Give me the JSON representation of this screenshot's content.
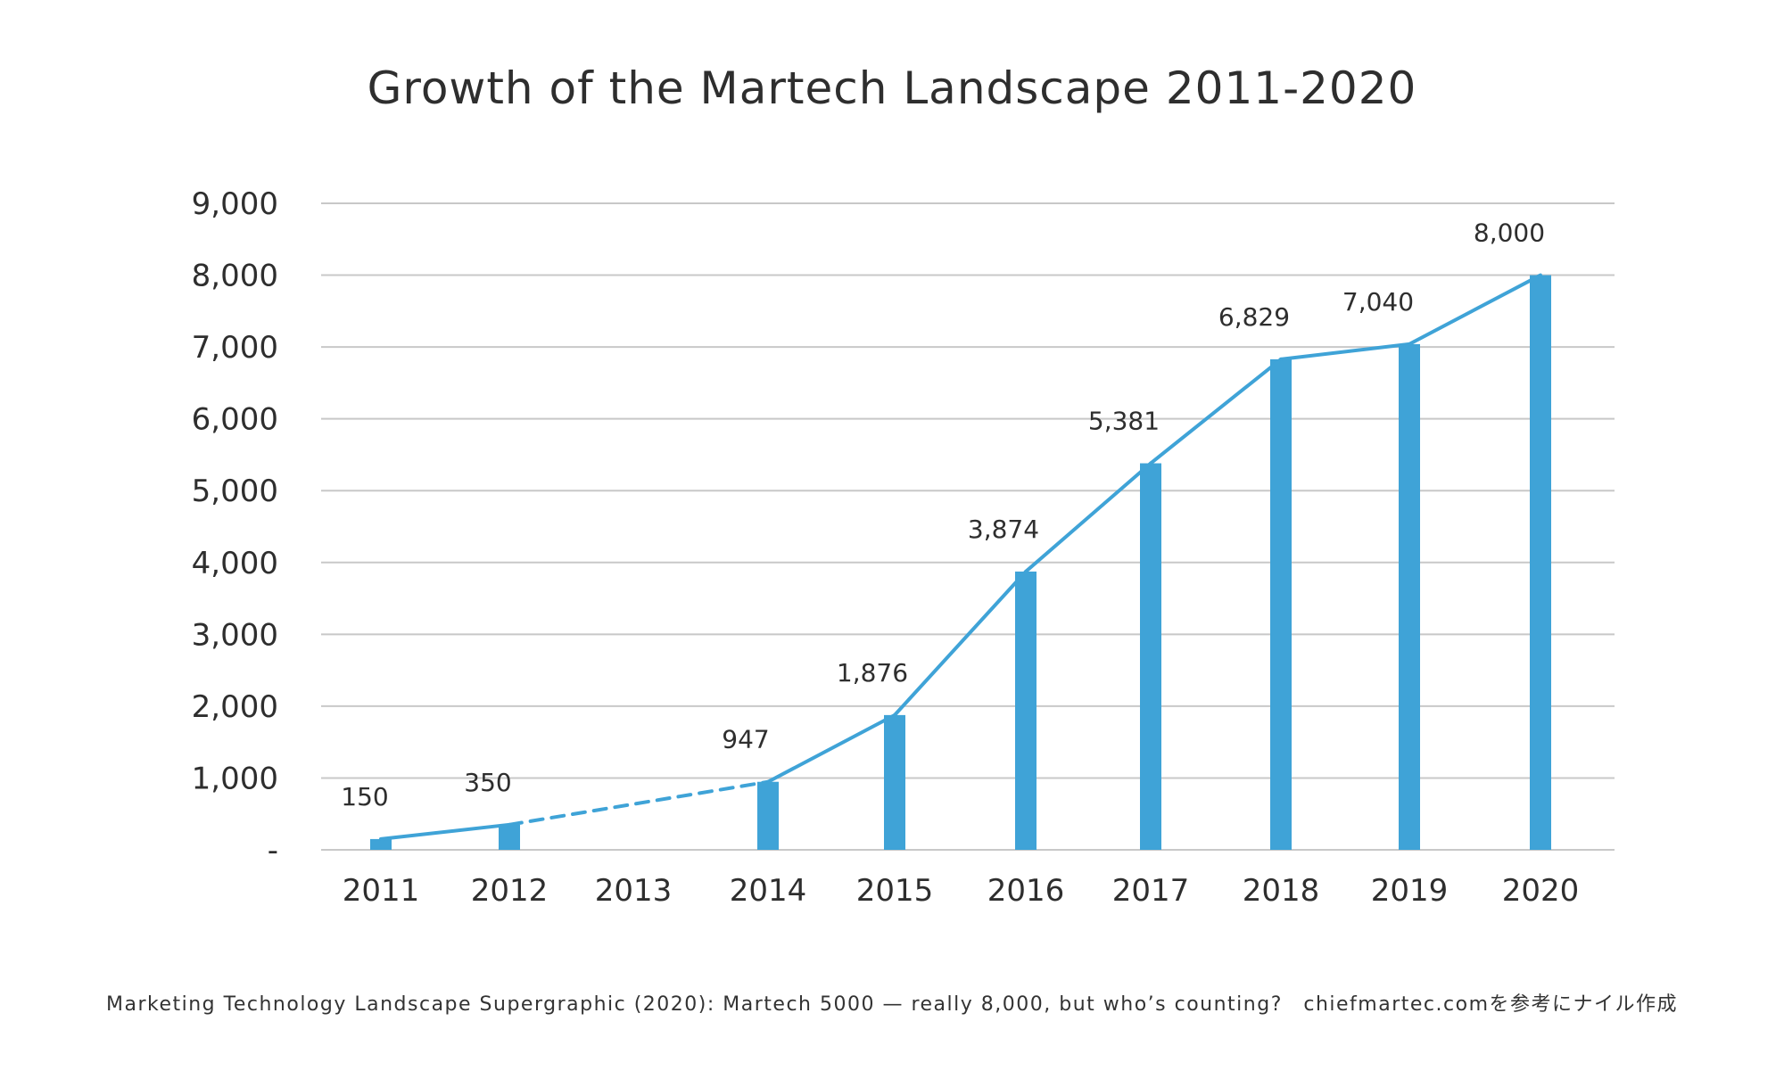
{
  "chart_data": {
    "type": "bar",
    "title": "Growth of the Martech Landscape 2011-2020",
    "categories": [
      "2011",
      "2012",
      "2013",
      "2014",
      "2015",
      "2016",
      "2017",
      "2018",
      "2019",
      "2020"
    ],
    "values": [
      150,
      350,
      null,
      947,
      1876,
      3874,
      5381,
      6829,
      7040,
      8000
    ],
    "data_labels": [
      "150",
      "350",
      "",
      "947",
      "1,876",
      "3,874",
      "5,381",
      "6,829",
      "7,040",
      "8,000"
    ],
    "overlay_line": {
      "type": "line",
      "values": [
        150,
        350,
        null,
        947,
        1876,
        3874,
        5381,
        6829,
        7040,
        8000
      ],
      "dashed_segment": [
        "2012",
        "2014"
      ]
    },
    "ylim": [
      0,
      9000
    ],
    "yticks": [
      0,
      1000,
      2000,
      3000,
      4000,
      5000,
      6000,
      7000,
      8000,
      9000
    ],
    "ytick_labels": [
      "-",
      "1,000",
      "2,000",
      "3,000",
      "4,000",
      "5,000",
      "6,000",
      "7,000",
      "8,000",
      "9,000"
    ],
    "xlabel": "",
    "ylabel": "",
    "grid": "horizontal",
    "legend": "none",
    "bar_color": "#3fa3d7",
    "line_color": "#3fa3d7",
    "grid_color": "#c8c8c8"
  },
  "footer": {
    "note": "Marketing Technology Landscape Supergraphic (2020): Martech 5000 — really 8,000, but who’s counting?　chiefmartec.comを参考にナイル作成"
  }
}
